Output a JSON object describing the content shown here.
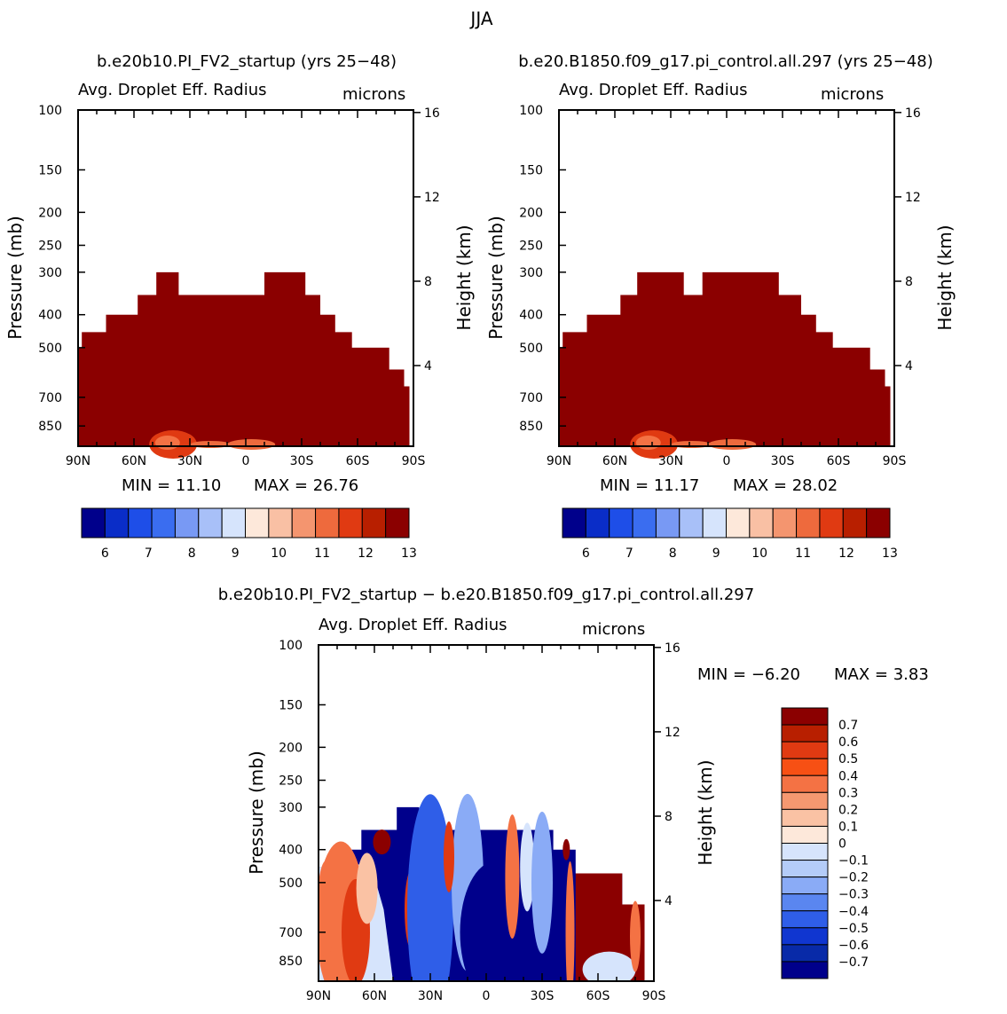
{
  "season": "JJA",
  "header": {
    "left_case": "b.e20b10.PI_FV2_startup (yrs 25−48)",
    "right_case": "b.e20.B1850.f09_g17.pi_control.all.297 (yrs 25−48)"
  },
  "diff_title": "b.e20b10.PI_FV2_startup − b.e20.B1850.f09_g17.pi_control.all.297",
  "colors": {
    "dark_red": "#8b0000",
    "dark_blue": "#000080",
    "frame": "#000000"
  },
  "chart_data": [
    {
      "type": "heatmap",
      "id": "left",
      "title": "Avg. Droplet Eff. Radius",
      "units": "microns",
      "xlabel": "",
      "ylabel": "Pressure (mb)",
      "y2label": "Height (km)",
      "x_ticks": [
        "90N",
        "60N",
        "30N",
        "0",
        "30S",
        "60S",
        "90S"
      ],
      "pressure_ticks": [
        "100",
        "150",
        "200",
        "250",
        "300",
        "400",
        "500",
        "700",
        "850"
      ],
      "pressure_values": [
        100,
        150,
        200,
        250,
        300,
        400,
        500,
        700,
        850
      ],
      "height_ticks": [
        "16",
        "12",
        "8",
        "4"
      ],
      "height_values": [
        16,
        12,
        8,
        4
      ],
      "ylim_mb": [
        100,
        1000
      ],
      "xlim_lat": [
        90,
        -90
      ],
      "min_label": "MIN =   11.10",
      "max_label": "MAX =   26.76",
      "min": 11.1,
      "max": 26.76,
      "cloud_top_profile": [
        {
          "lat": 90,
          "p": 500
        },
        {
          "lat": 88,
          "p": 450
        },
        {
          "lat": 75,
          "p": 400
        },
        {
          "lat": 58,
          "p": 350
        },
        {
          "lat": 48,
          "p": 300
        },
        {
          "lat": 36,
          "p": 350
        },
        {
          "lat": -10,
          "p": 300
        },
        {
          "lat": -32,
          "p": 350
        },
        {
          "lat": -40,
          "p": 400
        },
        {
          "lat": -48,
          "p": 450
        },
        {
          "lat": -57,
          "p": 500
        },
        {
          "lat": -77,
          "p": 580
        },
        {
          "lat": -85,
          "p": 650
        }
      ],
      "colorbar": {
        "labels": [
          "6",
          "7",
          "8",
          "9",
          "10",
          "11",
          "12",
          "13"
        ],
        "colors": [
          "#00008b",
          "#0a2dc8",
          "#1e4ee8",
          "#3a6df0",
          "#7899f4",
          "#a8c0f8",
          "#d6e4fc",
          "#fde8da",
          "#f9c0a4",
          "#f4956f",
          "#ee6a3d",
          "#e03a12",
          "#b81f00",
          "#8b0000"
        ]
      }
    },
    {
      "type": "heatmap",
      "id": "right",
      "title": "Avg. Droplet Eff. Radius",
      "units": "microns",
      "xlabel": "",
      "ylabel": "Pressure (mb)",
      "y2label": "Height (km)",
      "x_ticks": [
        "90N",
        "60N",
        "30N",
        "0",
        "30S",
        "60S",
        "90S"
      ],
      "pressure_ticks": [
        "100",
        "150",
        "200",
        "250",
        "300",
        "400",
        "500",
        "700",
        "850"
      ],
      "pressure_values": [
        100,
        150,
        200,
        250,
        300,
        400,
        500,
        700,
        850
      ],
      "height_ticks": [
        "16",
        "12",
        "8",
        "4"
      ],
      "height_values": [
        16,
        12,
        8,
        4
      ],
      "ylim_mb": [
        100,
        1000
      ],
      "xlim_lat": [
        90,
        -90
      ],
      "min_label": "MIN =   11.17",
      "max_label": "MAX =   28.02",
      "min": 11.17,
      "max": 28.02,
      "cloud_top_profile": [
        {
          "lat": 90,
          "p": 500
        },
        {
          "lat": 88,
          "p": 450
        },
        {
          "lat": 75,
          "p": 400
        },
        {
          "lat": 57,
          "p": 350
        },
        {
          "lat": 48,
          "p": 300
        },
        {
          "lat": 23,
          "p": 350
        },
        {
          "lat": 13,
          "p": 300
        },
        {
          "lat": -14,
          "p": 300
        },
        {
          "lat": -28,
          "p": 350
        },
        {
          "lat": -40,
          "p": 400
        },
        {
          "lat": -48,
          "p": 450
        },
        {
          "lat": -57,
          "p": 500
        },
        {
          "lat": -77,
          "p": 580
        },
        {
          "lat": -85,
          "p": 650
        }
      ],
      "colorbar": {
        "labels": [
          "6",
          "7",
          "8",
          "9",
          "10",
          "11",
          "12",
          "13"
        ],
        "colors": [
          "#00008b",
          "#0a2dc8",
          "#1e4ee8",
          "#3a6df0",
          "#7899f4",
          "#a8c0f8",
          "#d6e4fc",
          "#fde8da",
          "#f9c0a4",
          "#f4956f",
          "#ee6a3d",
          "#e03a12",
          "#b81f00",
          "#8b0000"
        ]
      }
    },
    {
      "type": "heatmap",
      "id": "diff",
      "title": "Avg. Droplet Eff. Radius",
      "units": "microns",
      "xlabel": "",
      "ylabel": "Pressure (mb)",
      "y2label": "Height (km)",
      "x_ticks": [
        "90N",
        "60N",
        "30N",
        "0",
        "30S",
        "60S",
        "90S"
      ],
      "pressure_ticks": [
        "100",
        "150",
        "200",
        "250",
        "300",
        "400",
        "500",
        "700",
        "850"
      ],
      "pressure_values": [
        100,
        150,
        200,
        250,
        300,
        400,
        500,
        700,
        850
      ],
      "height_ticks": [
        "16",
        "12",
        "8",
        "4"
      ],
      "height_values": [
        16,
        12,
        8,
        4
      ],
      "ylim_mb": [
        100,
        1000
      ],
      "xlim_lat": [
        90,
        -90
      ],
      "min_label": "MIN =   −6.20",
      "max_label": "MAX =     3.83",
      "min": -6.2,
      "max": 3.83,
      "colorbar": {
        "labels": [
          "0.7",
          "0.6",
          "0.5",
          "0.4",
          "0.3",
          "0.2",
          "0.1",
          "0",
          "−0.1",
          "−0.2",
          "−0.3",
          "−0.4",
          "−0.5",
          "−0.6",
          "−0.7"
        ],
        "colors": [
          "#8b0000",
          "#b81f00",
          "#e03a12",
          "#f75014",
          "#f47244",
          "#f59870",
          "#fac2a4",
          "#fde8da",
          "#d6e4fc",
          "#b4ccf8",
          "#8aabf6",
          "#5a86f0",
          "#2f5ee8",
          "#1036d0",
          "#082aa8",
          "#00008b"
        ]
      }
    }
  ]
}
